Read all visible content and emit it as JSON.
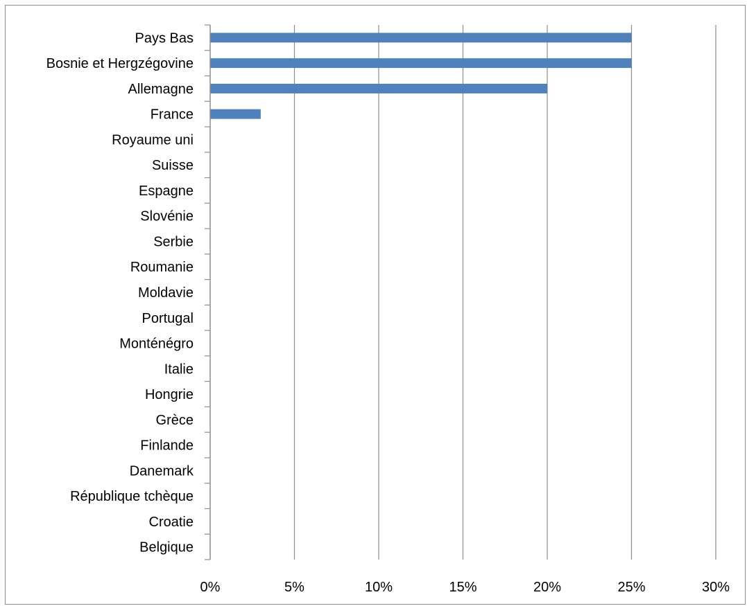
{
  "chart_data": {
    "type": "bar",
    "orientation": "horizontal",
    "categories": [
      "Pays Bas",
      "Bosnie et Hergzégovine",
      "Allemagne",
      "France",
      "Royaume uni",
      "Suisse",
      "Espagne",
      "Slovénie",
      "Serbie",
      "Roumanie",
      "Moldavie",
      "Portugal",
      "Monténégro",
      "Italie",
      "Hongrie",
      "Grèce",
      "Finlande",
      "Danemark",
      "République tchèque",
      "Croatie",
      "Belgique"
    ],
    "values": [
      25,
      25,
      20,
      3,
      0,
      0,
      0,
      0,
      0,
      0,
      0,
      0,
      0,
      0,
      0,
      0,
      0,
      0,
      0,
      0,
      0
    ],
    "x_ticks": [
      "0%",
      "5%",
      "10%",
      "15%",
      "20%",
      "25%",
      "30%"
    ],
    "xlim": [
      0,
      30
    ],
    "title": "",
    "xlabel": "",
    "ylabel": "",
    "grid": "vertical",
    "bar_color": "#4f81bd"
  }
}
